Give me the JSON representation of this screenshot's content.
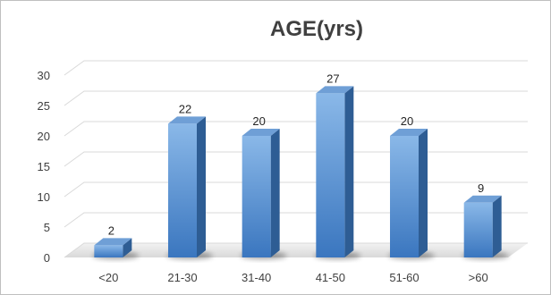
{
  "chart_data": {
    "type": "bar",
    "title": "AGE(yrs)",
    "categories": [
      "<20",
      "21-30",
      "31-40",
      "41-50",
      "51-60",
      ">60"
    ],
    "values": [
      2,
      22,
      20,
      27,
      20,
      9
    ],
    "xlabel": "",
    "ylabel": "",
    "ylim": [
      0,
      30
    ],
    "yticks": [
      0,
      5,
      10,
      15,
      20,
      25,
      30
    ],
    "grid": true,
    "legend": "none",
    "style": "3d-column",
    "colors": {
      "bar_front_top": "#8ab8e8",
      "bar_front_bottom": "#3a76bf",
      "bar_side": "#2e5d94",
      "bar_top": "#6f9fd6",
      "grid": "#d9d9d9",
      "text": "#404040"
    }
  }
}
